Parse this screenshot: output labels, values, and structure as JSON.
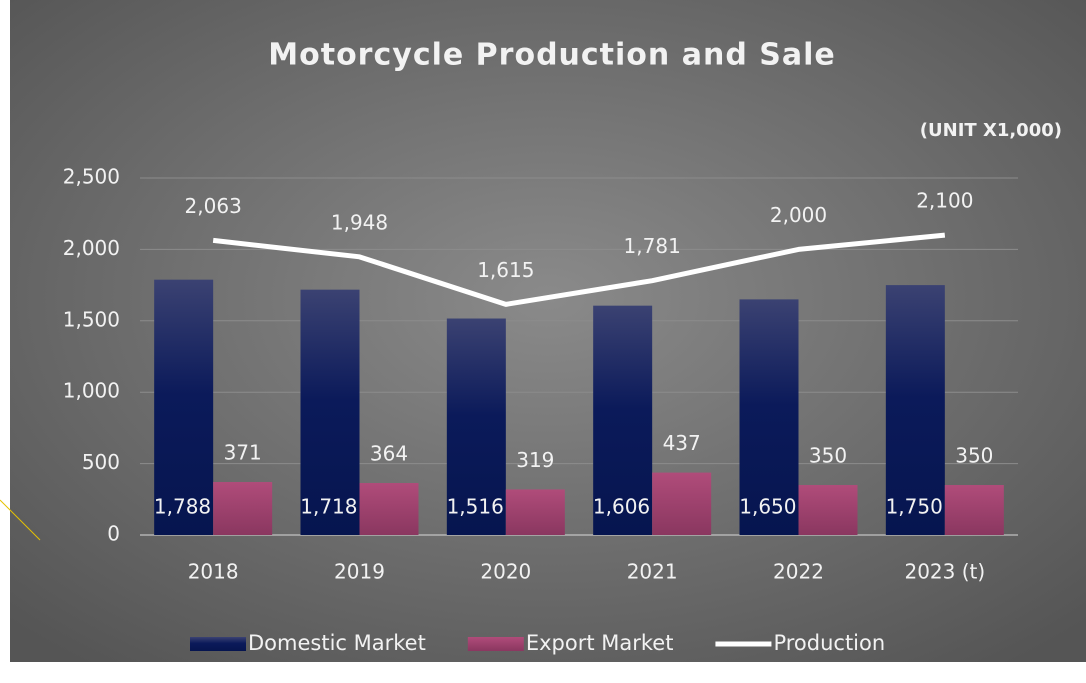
{
  "chart_data": {
    "type": "bar",
    "title": "Motorcycle Production and Sale",
    "subtitle": "(UNIT X1,000)",
    "categories": [
      "2018",
      "2019",
      "2020",
      "2021",
      "2022",
      "2023 (t)"
    ],
    "series": [
      {
        "name": "Domestic Market",
        "type": "bar",
        "color": "#0b1a5a",
        "values": [
          1788,
          1718,
          1516,
          1606,
          1650,
          1750
        ],
        "value_labels": [
          "1,788",
          "1,718",
          "1,516",
          "1,606",
          "1,650",
          "1,750"
        ]
      },
      {
        "name": "Export Market",
        "type": "bar",
        "color": "#a0436f",
        "values": [
          371,
          364,
          319,
          437,
          350,
          350
        ]
      },
      {
        "name": "Production",
        "type": "line",
        "color": "#ffffff",
        "values": [
          2063,
          1948,
          1615,
          1781,
          2000,
          2100
        ],
        "value_labels": [
          "2,063",
          "1,948",
          "1,615",
          "1,781",
          "2,000",
          "2,100"
        ]
      }
    ],
    "ylim": [
      0,
      2500
    ],
    "yticks": [
      0,
      500,
      {
        "value": 1000,
        "label": "1,000"
      },
      {
        "value": 1500,
        "label": "1,500"
      },
      {
        "value": 2000,
        "label": "2,000"
      },
      {
        "value": 2500,
        "label": "2,500"
      }
    ],
    "grid": true,
    "legend": "bottom"
  }
}
